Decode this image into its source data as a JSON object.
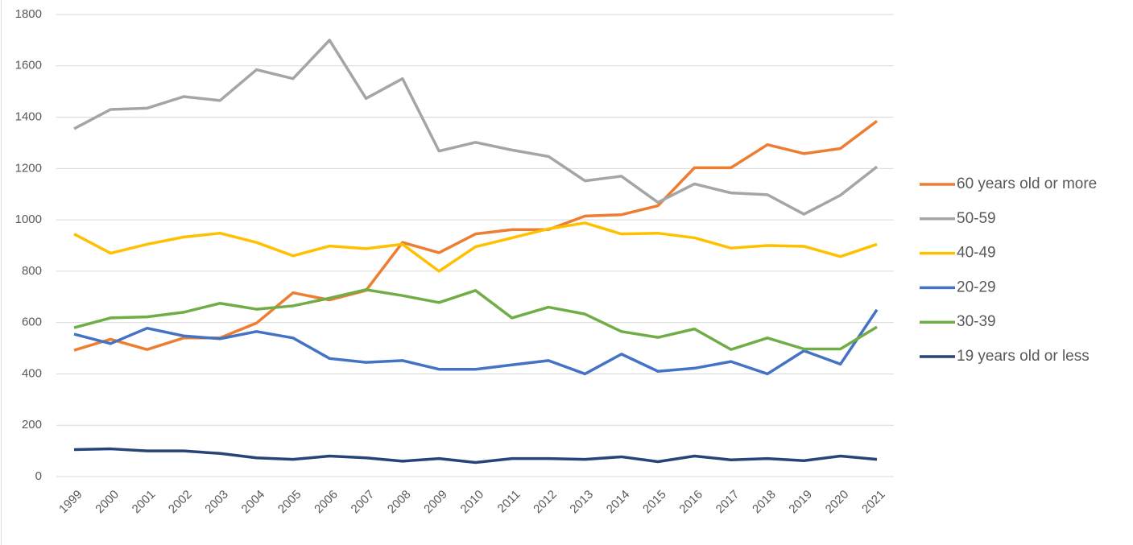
{
  "chart_data": {
    "type": "line",
    "categories": [
      "1999",
      "2000",
      "2001",
      "2002",
      "2003",
      "2004",
      "2005",
      "2006",
      "2007",
      "2008",
      "2009",
      "2010",
      "2011",
      "2012",
      "2013",
      "2014",
      "2015",
      "2016",
      "2017",
      "2018",
      "2019",
      "2020",
      "2021"
    ],
    "ylim": [
      0,
      1800
    ],
    "yticks": [
      0,
      200,
      400,
      600,
      800,
      1000,
      1200,
      1400,
      1600,
      1800
    ],
    "grid": true,
    "legend": "right",
    "series": [
      {
        "name": "60 years old or more",
        "color": "#ED7D31",
        "values": [
          492,
          535,
          495,
          540,
          540,
          598,
          716,
          688,
          725,
          912,
          872,
          945,
          962,
          962,
          1015,
          1020,
          1055,
          1203,
          1203,
          1293,
          1258,
          1278,
          1385
        ]
      },
      {
        "name": "50-59",
        "color": "#A5A5A5",
        "values": [
          1355,
          1430,
          1435,
          1480,
          1465,
          1585,
          1550,
          1700,
          1473,
          1550,
          1268,
          1302,
          1272,
          1247,
          1152,
          1170,
          1068,
          1140,
          1105,
          1098,
          1022,
          1096,
          1207
        ]
      },
      {
        "name": "40-49",
        "color": "#FFC000",
        "values": [
          945,
          870,
          905,
          933,
          948,
          912,
          860,
          898,
          888,
          905,
          800,
          895,
          930,
          965,
          988,
          945,
          948,
          930,
          890,
          900,
          897,
          857,
          905
        ]
      },
      {
        "name": "20-29",
        "color": "#4472C4",
        "values": [
          555,
          518,
          578,
          548,
          537,
          565,
          540,
          460,
          445,
          452,
          418,
          418,
          435,
          452,
          400,
          477,
          410,
          422,
          448,
          400,
          490,
          438,
          650
        ]
      },
      {
        "name": "30-39",
        "color": "#70AD47",
        "values": [
          580,
          618,
          622,
          640,
          675,
          652,
          665,
          695,
          728,
          705,
          678,
          725,
          618,
          660,
          633,
          565,
          542,
          575,
          495,
          540,
          497,
          497,
          583
        ]
      },
      {
        "name": "19 years old or less",
        "color": "#264478",
        "values": [
          105,
          108,
          100,
          100,
          90,
          73,
          67,
          80,
          73,
          60,
          70,
          55,
          70,
          70,
          67,
          77,
          58,
          80,
          65,
          70,
          62,
          80,
          67
        ]
      }
    ]
  }
}
